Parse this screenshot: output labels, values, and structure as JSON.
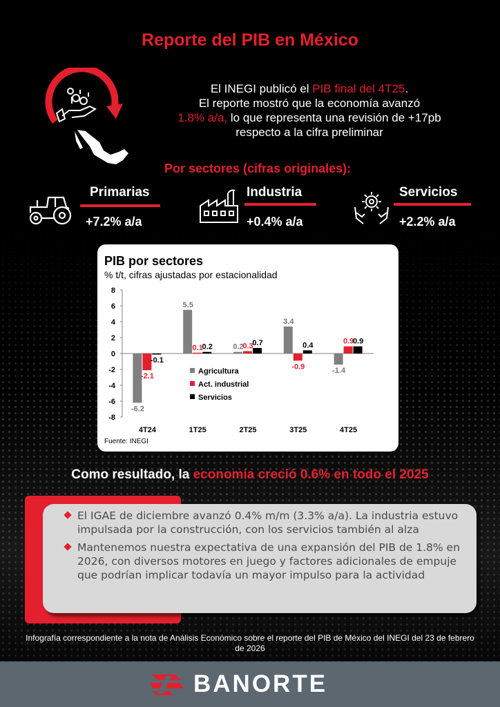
{
  "title": "Reporte del PIB en México",
  "intro": {
    "line1_pre": "El INEGI publicó el ",
    "line1_red": "PIB final del 4T25",
    "line1_post": ".",
    "line2": "El reporte mostró que la economía avanzó",
    "line3_red": "1.8% a/a,",
    "line3_post": " lo que representa una revisión de +17pb",
    "line4": "respecto a la cifra preliminar"
  },
  "sectors_title": "Por sectores (cifras originales):",
  "sectors": [
    {
      "name": "Primarias",
      "value": "+7.2% a/a",
      "icon": "tractor-icon"
    },
    {
      "name": "Industria",
      "value": "+0.4% a/a",
      "icon": "factory-icon"
    },
    {
      "name": "Servicios",
      "value": "+2.2% a/a",
      "icon": "gear-hands-icon"
    }
  ],
  "chart_data": {
    "type": "bar",
    "title": "PIB por sectores",
    "subtitle": "% t/t, cifras ajustadas por estacionalidad",
    "source": "Fuente: INEGI",
    "categories": [
      "4T24",
      "1T25",
      "2T25",
      "3T25",
      "4T25"
    ],
    "yticks": [
      "8",
      "6",
      "4",
      "2",
      "0",
      "-2",
      "-4",
      "-6",
      "-8"
    ],
    "ylim": [
      -8,
      8
    ],
    "series": [
      {
        "name": "Agricultura",
        "color": "#808080",
        "values": [
          -6.2,
          5.5,
          0.2,
          3.4,
          -1.4
        ],
        "labels": [
          "-6.2",
          "5.5",
          "0.2",
          "3.4",
          "-1.4"
        ]
      },
      {
        "name": "Act. industrial",
        "color": "#e4202e",
        "values": [
          -2.1,
          0.1,
          0.3,
          -0.9,
          0.9
        ],
        "labels": [
          "-2.1",
          "0.1",
          "0.3",
          "-0.9",
          "0.9"
        ]
      },
      {
        "name": "Servicios",
        "color": "#000000",
        "values": [
          -0.1,
          0.2,
          0.7,
          0.4,
          0.9
        ],
        "labels": [
          "-0.1",
          "0.2",
          "0.7",
          "0.4",
          "0.9"
        ]
      }
    ],
    "legend_position": "lower-center"
  },
  "result": {
    "pre": "Como resultado, la ",
    "red": "economía creció 0.6% en todo el 2025"
  },
  "bullets": [
    "El IGAE de diciembre avanzó 0.4% m/m (3.3% a/a). La industria estuvo impulsada por la construcción, con los servicios también al alza",
    "Mantenemos nuestra expectativa de una expansión del PIB de 1.8% en 2026, con diversos motores en juego y factores adicionales de empuje que podrían implicar todavía un mayor impulso para la actividad"
  ],
  "footnote": "Infografía correspondiente a la nota de Análisis Económico sobre el reporte del PIB de México del INEGI del 23 de febrero de 2026",
  "brand": {
    "name": "BANORTE",
    "logo_color": "#e4202e"
  }
}
